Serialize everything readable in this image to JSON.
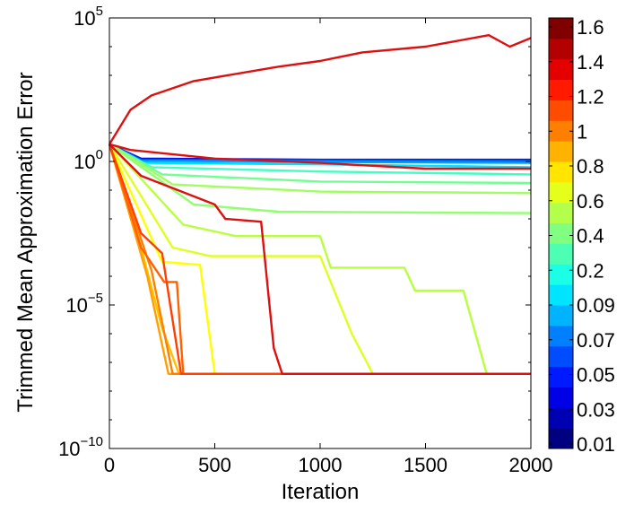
{
  "chart_data": {
    "type": "line",
    "xlabel": "Iteration",
    "ylabel": "Trimmed Mean Approximation Error",
    "xlim": [
      0,
      2000
    ],
    "ylim_log10": [
      -10,
      5
    ],
    "yscale": "log",
    "grid": false,
    "x_ticks": [
      "0",
      "500",
      "1000",
      "1500",
      "2000"
    ],
    "x_tick_values": [
      0,
      500,
      1000,
      1500,
      2000
    ],
    "y_ticks": [
      {
        "base": "10",
        "exp": "5",
        "value_log10": 5
      },
      {
        "base": "10",
        "exp": "0",
        "value_log10": 0
      },
      {
        "base": "10",
        "exp": "−5",
        "value_log10": -5
      },
      {
        "base": "10",
        "exp": "−10",
        "value_log10": -10
      }
    ],
    "colorbar": {
      "tick_labels": [
        "0.01",
        "0.03",
        "0.05",
        "0.07",
        "0.09",
        "0.2",
        "0.4",
        "0.6",
        "0.8",
        "1",
        "1.2",
        "1.4",
        "1.6"
      ],
      "colormap": "jet",
      "bands": 21
    },
    "series": [
      {
        "color": "#0000c8",
        "x": [
          0,
          150,
          1000,
          2000
        ],
        "y": [
          0.6,
          0.1,
          0.06,
          0.06
        ]
      },
      {
        "color": "#0020ff",
        "x": [
          0,
          150,
          1000,
          2000
        ],
        "y": [
          0.6,
          0.08,
          0.05,
          0.05
        ]
      },
      {
        "color": "#0060ff",
        "x": [
          0,
          150,
          1000,
          2000
        ],
        "y": [
          0.6,
          0.05,
          0.03,
          0.02
        ]
      },
      {
        "color": "#00a0ff",
        "x": [
          0,
          150,
          1000,
          2000
        ],
        "y": [
          0.6,
          0.02,
          -0.02,
          -0.05
        ]
      },
      {
        "color": "#00e0ff",
        "x": [
          0,
          150,
          1000,
          2000
        ],
        "y": [
          0.6,
          -0.05,
          -0.1,
          -0.2
        ]
      },
      {
        "color": "#40ffc0",
        "x": [
          0,
          200,
          1000,
          2000
        ],
        "y": [
          0.6,
          -0.2,
          -0.35,
          -0.45
        ]
      },
      {
        "color": "#70ff90",
        "x": [
          0,
          250,
          1000,
          2000
        ],
        "y": [
          0.6,
          -0.45,
          -0.7,
          -0.75
        ]
      },
      {
        "color": "#a0ff60",
        "x": [
          0,
          300,
          1000,
          2000
        ],
        "y": [
          0.6,
          -0.8,
          -1.05,
          -1.1
        ]
      },
      {
        "color": "#90ff70",
        "x": [
          0,
          400,
          800,
          2000
        ],
        "y": [
          0.6,
          -1.5,
          -1.75,
          -1.8
        ]
      },
      {
        "color": "#b8ff40",
        "x": [
          0,
          350,
          600,
          1000,
          1050,
          1400,
          1450,
          1680,
          1790,
          2000
        ],
        "y": [
          0.6,
          -2.2,
          -2.6,
          -2.6,
          -3.7,
          -3.7,
          -4.5,
          -4.5,
          -7.4,
          -7.4
        ]
      },
      {
        "color": "#e0ff20",
        "x": [
          0,
          300,
          480,
          1000,
          1150,
          1250,
          2000
        ],
        "y": [
          0.6,
          -3.0,
          -3.3,
          -3.3,
          -6.0,
          -7.4,
          -7.4
        ]
      },
      {
        "color": "#ffff00",
        "x": [
          0,
          250,
          430,
          500,
          2000
        ],
        "y": [
          0.6,
          -3.5,
          -3.6,
          -7.4,
          -7.4
        ]
      },
      {
        "color": "#ffc000",
        "x": [
          0,
          150,
          250,
          330,
          2000
        ],
        "y": [
          0.6,
          -3.0,
          -5.8,
          -7.4,
          -7.4
        ]
      },
      {
        "color": "#ffa000",
        "x": [
          0,
          180,
          280,
          2000
        ],
        "y": [
          0.6,
          -4.0,
          -7.4,
          -7.4
        ]
      },
      {
        "color": "#ff8000",
        "x": [
          0,
          200,
          300,
          2000
        ],
        "y": [
          0.6,
          -3.8,
          -7.4,
          -7.4
        ]
      },
      {
        "color": "#ff6000",
        "x": [
          0,
          150,
          260,
          320,
          350,
          2000
        ],
        "y": [
          0.6,
          -3.0,
          -4.2,
          -4.2,
          -7.4,
          -7.4
        ]
      },
      {
        "color": "#ff4000",
        "x": [
          0,
          150,
          250,
          340,
          2000
        ],
        "y": [
          0.6,
          -2.5,
          -3.2,
          -7.4,
          -7.4
        ]
      },
      {
        "color": "#dd1010",
        "x": [
          0,
          150,
          500,
          550,
          720,
          780,
          820,
          2000
        ],
        "y": [
          0.6,
          -0.5,
          -1.5,
          -2.0,
          -2.1,
          -6.5,
          -7.4,
          -7.4
        ]
      },
      {
        "color": "#dd1010",
        "x": [
          0,
          100,
          500,
          1000,
          1500,
          2000
        ],
        "y": [
          0.6,
          0.4,
          0.1,
          -0.05,
          -0.25,
          -0.25
        ]
      },
      {
        "color": "#dd1010",
        "x": [
          0,
          100,
          200,
          400,
          800,
          1000,
          1200,
          1500,
          1800,
          1900,
          2000
        ],
        "y": [
          0.6,
          1.8,
          2.3,
          2.8,
          3.3,
          3.5,
          3.8,
          4.0,
          4.4,
          4.0,
          4.3
        ]
      }
    ]
  }
}
